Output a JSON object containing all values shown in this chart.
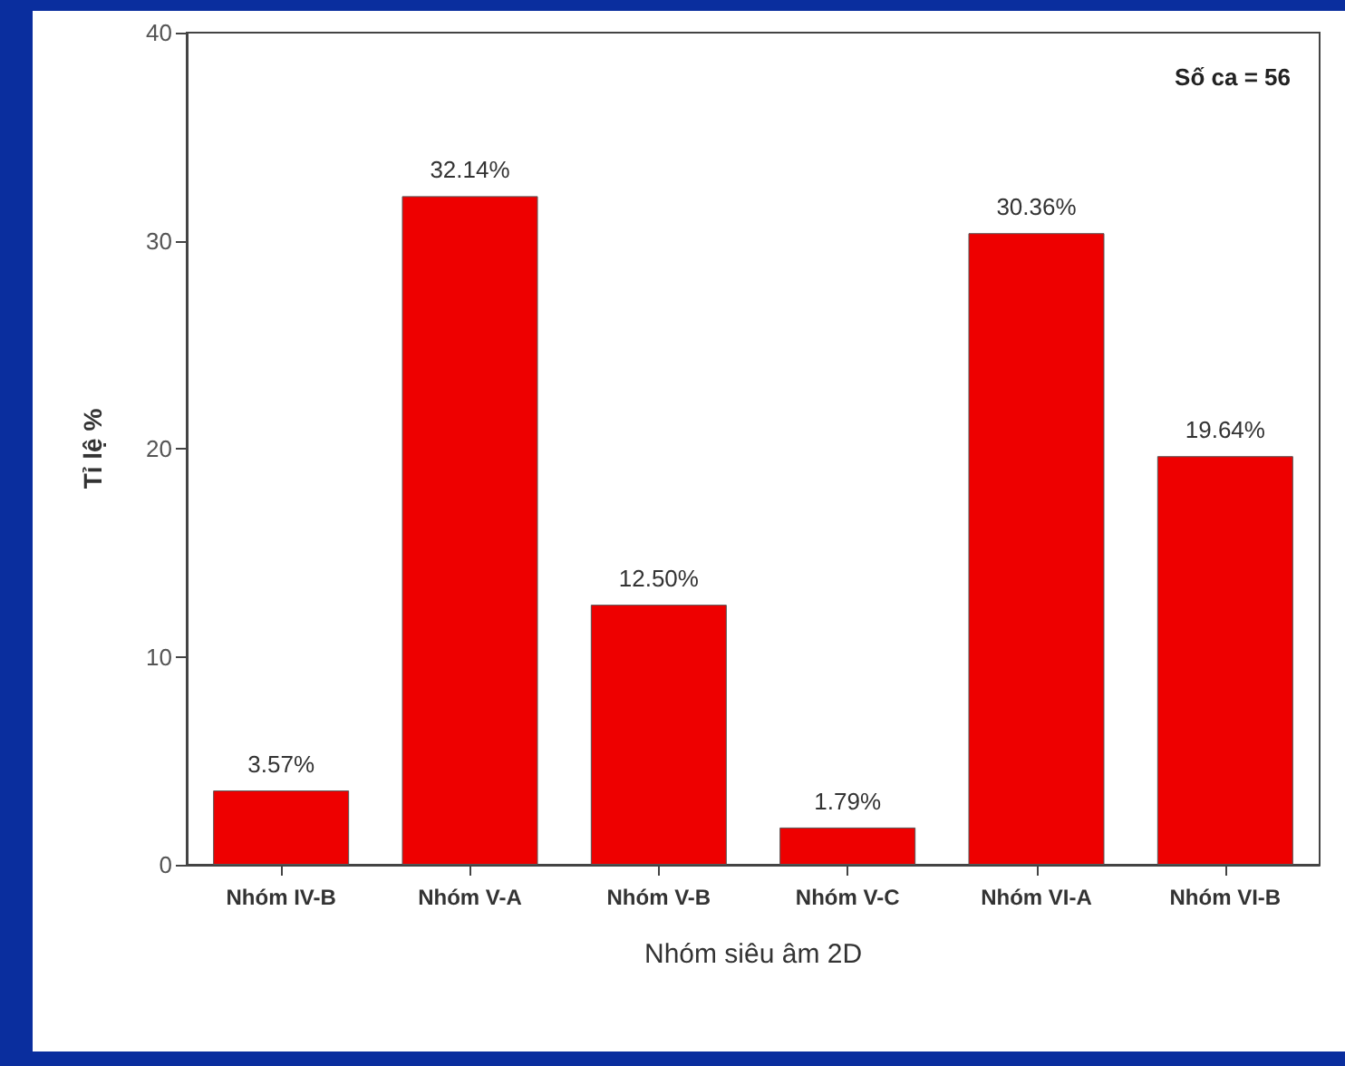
{
  "chart_data": {
    "type": "bar",
    "xlabel": "Nhóm siêu âm 2D",
    "ylabel": "Tỉ lệ %",
    "annotations": [
      "Số ca = 56"
    ],
    "categories": [
      "Nhóm IV-B",
      "Nhóm V-A",
      "Nhóm V-B",
      "Nhóm V-C",
      "Nhóm VI-A",
      "Nhóm VI-B"
    ],
    "values": [
      3.57,
      32.14,
      12.5,
      1.79,
      30.36,
      19.64
    ],
    "value_labels": [
      "3.57%",
      "32.14%",
      "12.50%",
      "1.79%",
      "30.36%",
      "19.64%"
    ],
    "color": "#ee0000",
    "ylim": [
      0,
      40
    ],
    "yticks": [
      0,
      10,
      20,
      30,
      40
    ],
    "grid": false
  }
}
